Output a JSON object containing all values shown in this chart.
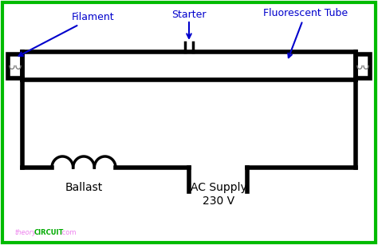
{
  "bg_color": "#ffffff",
  "border_color": "#00bb00",
  "line_color": "#000000",
  "arrow_color": "#0000cc",
  "text_color": "#000000",
  "label_color": "#0000cc",
  "watermark_theory": "#ee82ee",
  "watermark_circuit": "#00aa00",
  "watermark_dot_com": "#ee82ee",
  "labels": {
    "filament": "Filament",
    "starter": "Starter",
    "fluorescent_tube": "Fluorescent Tube",
    "ballast": "Ballast",
    "ac_supply": "AC Supply",
    "ac_voltage": "230 V"
  },
  "figsize": [
    4.74,
    3.07
  ],
  "dpi": 100
}
